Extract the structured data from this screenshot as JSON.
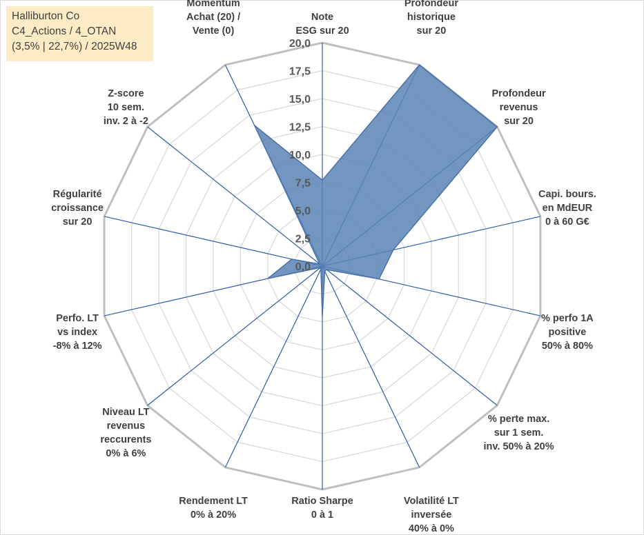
{
  "info": {
    "line1": "Halliburton Co",
    "line2": "C4_Actions / 4_OTAN",
    "line3": "(3,5% | 22,7%) / 2025W48"
  },
  "colors": {
    "series_fill": "#5b84b5",
    "series_stroke": "#4a72a8",
    "spoke": "#2e5aa8",
    "grid_outer": "#bfbfbf",
    "grid_inner": "#d9d9d9",
    "info_bg": "#fdebc6"
  },
  "chart_data": {
    "type": "radar",
    "r_range": [
      0,
      20
    ],
    "grid": true,
    "ticks": [
      "0,0",
      "2,5",
      "5,0",
      "7,5",
      "10,0",
      "12,5",
      "15,0",
      "17,5",
      "20,0"
    ],
    "axes": [
      {
        "label": [
          "Note",
          "ESG sur 20"
        ]
      },
      {
        "label": [
          "Profondeur",
          "historique",
          "sur 20"
        ]
      },
      {
        "label": [
          "Profondeur",
          "revenus",
          "sur 20"
        ]
      },
      {
        "label": [
          "Capi. bours.",
          "en MdEUR",
          "0 à 60 G€"
        ]
      },
      {
        "label": [
          "% perfo 1A",
          "positive",
          "50% à 80%"
        ]
      },
      {
        "label": [
          "% perte max.",
          "sur 1 sem.",
          "inv. 50% à 20%"
        ]
      },
      {
        "label": [
          "Volatilité LT",
          "inversée",
          "40% à 0%"
        ]
      },
      {
        "label": [
          "Ratio Sharpe",
          "0 à 1"
        ]
      },
      {
        "label": [
          "Rendement LT",
          "0% à 20%"
        ]
      },
      {
        "label": [
          "Niveau LT",
          "revenus",
          "reccurents",
          "0% à 6%"
        ]
      },
      {
        "label": [
          "Perfo. LT",
          "vs index",
          "-8% à 12%"
        ]
      },
      {
        "label": [
          "Régularité",
          "croissance",
          "sur 20"
        ]
      },
      {
        "label": [
          "Z-score",
          "10 sem.",
          "inv. 2 à -2"
        ]
      },
      {
        "label": [
          "Momentum",
          "Achat (20) /",
          "Vente (0)"
        ]
      }
    ],
    "series": [
      {
        "values": [
          7.7,
          20.0,
          20.0,
          6.5,
          5.2,
          0.5,
          0.5,
          4.5,
          0.3,
          0.2,
          5.0,
          2.8,
          0.3,
          14.0
        ]
      }
    ]
  }
}
